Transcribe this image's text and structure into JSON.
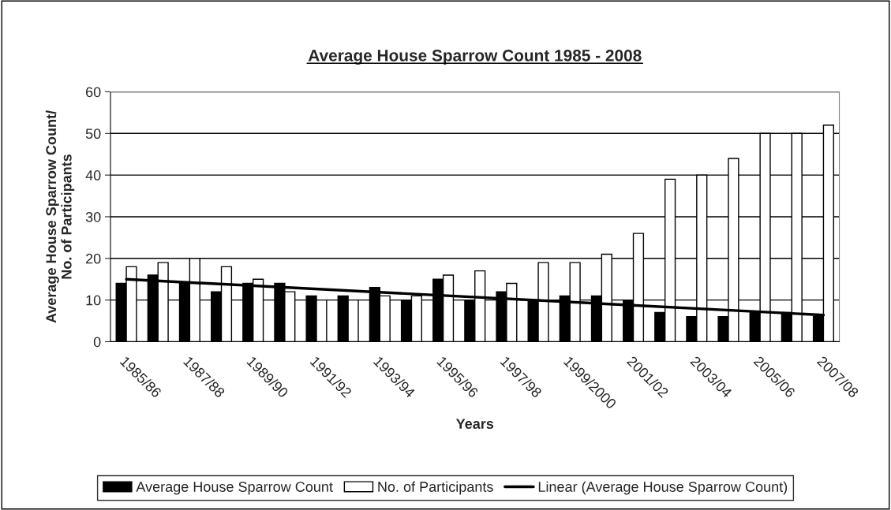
{
  "chart_data": {
    "type": "bar",
    "title": "Average House Sparrow Count 1985 - 2008",
    "xlabel": "Years",
    "ylabel": "Average House Sparrow Count/\nNo. of Participants",
    "categories": [
      "1985/86",
      null,
      "1987/88",
      null,
      "1989/90",
      null,
      "1991/92",
      null,
      "1993/94",
      null,
      "1995/96",
      null,
      "1997/98",
      null,
      "1999/2000",
      null,
      "2001/02",
      null,
      "2003/04",
      null,
      "2005/06",
      null,
      "2007/08"
    ],
    "series": [
      {
        "name": "Average House Sparrow Count",
        "color": "#000000",
        "values": [
          14,
          16,
          14,
          12,
          14,
          14,
          11,
          11,
          13,
          10,
          15,
          10,
          12,
          10,
          11,
          11,
          10,
          7,
          6,
          6,
          7,
          7,
          6
        ]
      },
      {
        "name": "No. of Participants",
        "color": "#ffffff",
        "values": [
          18,
          19,
          20,
          18,
          15,
          12,
          10,
          10,
          11,
          11,
          16,
          17,
          14,
          19,
          19,
          21,
          26,
          39,
          40,
          44,
          50,
          50,
          52
        ]
      },
      {
        "name": "Linear (Average House Sparrow Count)",
        "type": "line",
        "color": "#000000",
        "x": [
          "1985/86",
          "2007/08"
        ],
        "values": [
          15.0,
          6.4
        ]
      }
    ],
    "ylim": [
      0,
      60
    ],
    "yticks": [
      0,
      10,
      20,
      30,
      40,
      50,
      60
    ],
    "grid": "y",
    "legend": "bottom"
  }
}
